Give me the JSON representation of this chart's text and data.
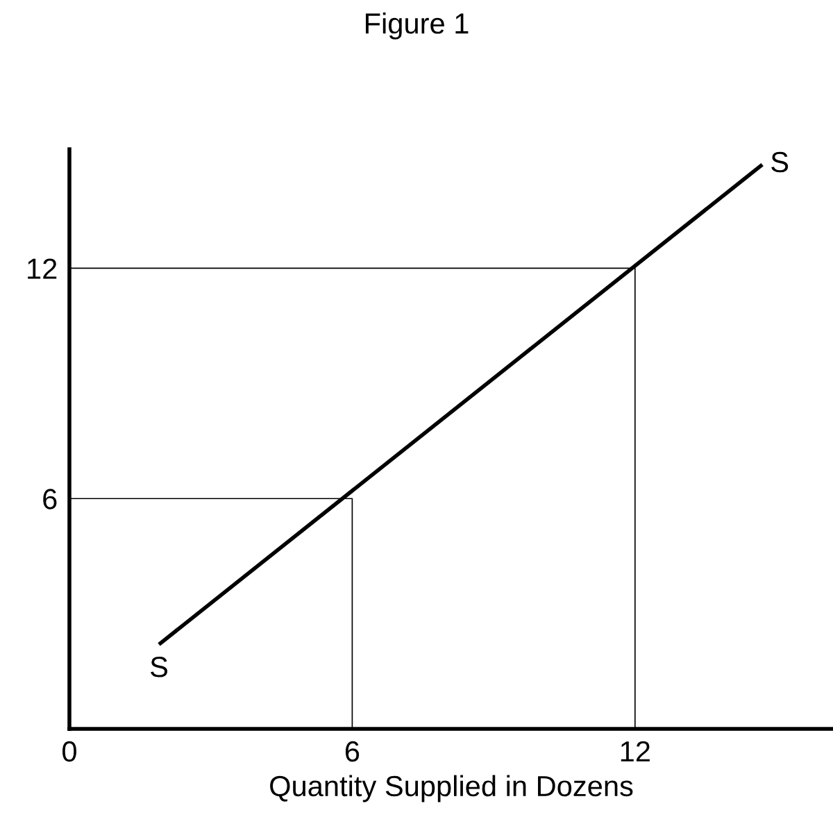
{
  "chart_data": {
    "type": "line",
    "title": "Figure 1",
    "xlabel": "Quantity Supplied in Dozens",
    "xlim": [
      0,
      16.2
    ],
    "ylim": [
      0,
      15.1
    ],
    "xticks": [
      0,
      6,
      12
    ],
    "yticks": [
      6,
      12
    ],
    "grid": false,
    "legend": false,
    "marker": "none",
    "line_style": "solid",
    "series": [
      {
        "color": "#000000",
        "x": [
          1.9,
          14.7
        ],
        "values": [
          2.2,
          14.7
        ]
      },
      {
        "color": "#000000",
        "x": [
          0,
          6,
          6
        ],
        "values": [
          6,
          6,
          0
        ]
      },
      {
        "color": "#000000",
        "x": [
          0,
          12,
          12
        ],
        "values": [
          12,
          12,
          0
        ]
      }
    ],
    "annotations": [
      {
        "text": "S",
        "x": 1.9,
        "y": 2.2
      },
      {
        "text": "S",
        "x": 14.7,
        "y": 14.7
      }
    ]
  }
}
